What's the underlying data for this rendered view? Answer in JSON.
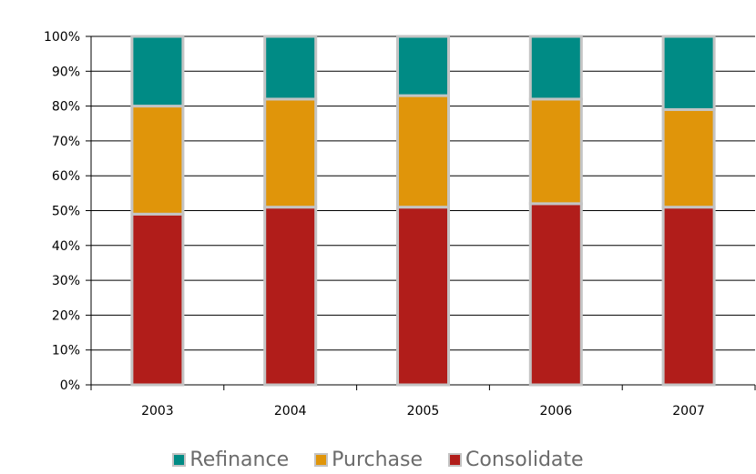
{
  "chart_data": {
    "type": "bar",
    "stacked": true,
    "categories": [
      "2003",
      "2004",
      "2005",
      "2006",
      "2007"
    ],
    "series": [
      {
        "name": "Consolidate",
        "color": "#b11d1a",
        "values": [
          49,
          51,
          51,
          52,
          51
        ]
      },
      {
        "name": "Purchase",
        "color": "#e0950a",
        "values": [
          31,
          31,
          32,
          30,
          28
        ]
      },
      {
        "name": "Refinance",
        "color": "#008b85",
        "values": [
          20,
          18,
          17,
          18,
          21
        ]
      }
    ],
    "ylim": [
      0,
      100
    ],
    "y_ticks": [
      "0%",
      "10%",
      "20%",
      "30%",
      "40%",
      "50%",
      "60%",
      "70%",
      "80%",
      "90%",
      "100%"
    ],
    "grid": true,
    "legend_position": "bottom",
    "legend_order": [
      "Refinance",
      "Purchase",
      "Consolidate"
    ],
    "bar_border_color": "#c4c4c4"
  }
}
